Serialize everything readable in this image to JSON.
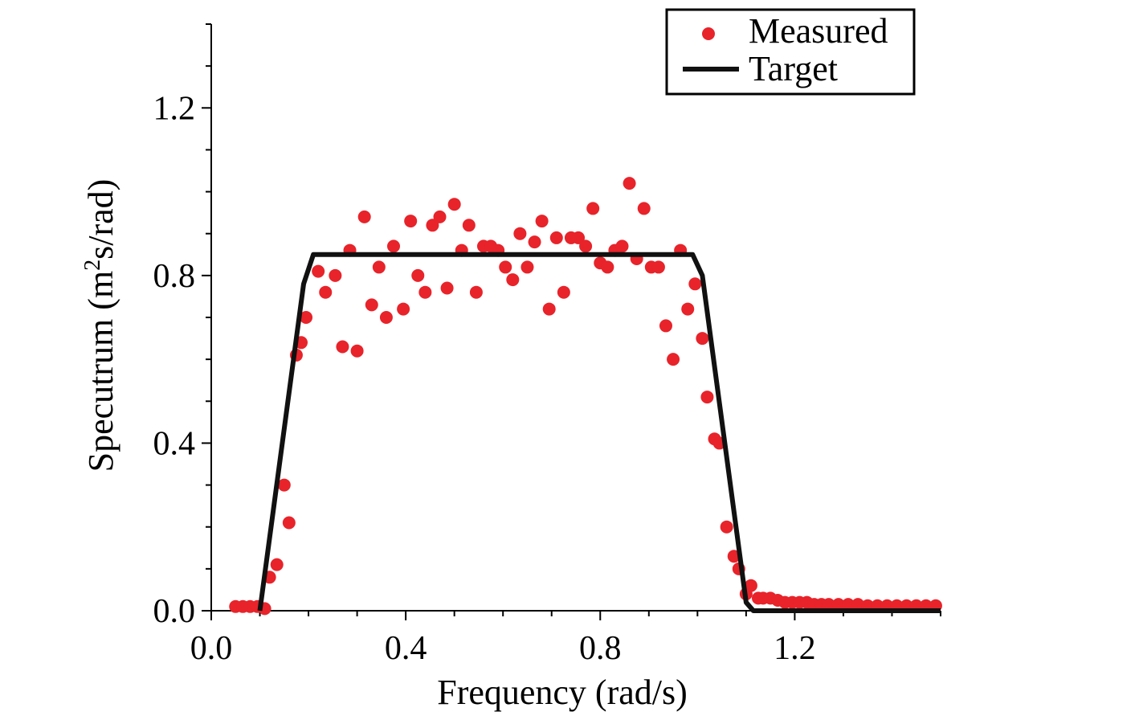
{
  "chart_data": {
    "type": "scatter",
    "xlabel": "Frequency (rad/s)",
    "ylabel_main": "Specutrum (m",
    "ylabel_sup": "2",
    "ylabel_tail": "s/rad)",
    "xlim": [
      0,
      1.5
    ],
    "ylim": [
      0,
      1.4
    ],
    "xticks": [
      0.0,
      0.4,
      0.8,
      1.2
    ],
    "xtick_labels": [
      "0.0",
      "0.4",
      "0.8",
      "1.2"
    ],
    "yticks": [
      0.0,
      0.4,
      0.8,
      1.2
    ],
    "ytick_labels": [
      "0.0",
      "0.4",
      "0.8",
      "1.2"
    ],
    "grid": false,
    "legend_position": "top-right",
    "colors": {
      "measured": "#e8232a",
      "target": "#111111"
    },
    "series": [
      {
        "name": "Measured",
        "style": "markers",
        "x": [
          0.05,
          0.065,
          0.08,
          0.095,
          0.11,
          0.12,
          0.135,
          0.15,
          0.16,
          0.175,
          0.185,
          0.195,
          0.22,
          0.235,
          0.255,
          0.27,
          0.285,
          0.3,
          0.315,
          0.33,
          0.345,
          0.36,
          0.375,
          0.395,
          0.41,
          0.425,
          0.44,
          0.455,
          0.47,
          0.485,
          0.5,
          0.515,
          0.53,
          0.545,
          0.56,
          0.575,
          0.59,
          0.605,
          0.62,
          0.635,
          0.65,
          0.665,
          0.68,
          0.695,
          0.71,
          0.725,
          0.74,
          0.755,
          0.77,
          0.785,
          0.8,
          0.815,
          0.83,
          0.845,
          0.86,
          0.875,
          0.89,
          0.905,
          0.92,
          0.935,
          0.95,
          0.965,
          0.98,
          0.995,
          1.01,
          1.02,
          1.035,
          1.045,
          1.06,
          1.075,
          1.085,
          1.1,
          1.11,
          1.125,
          1.135,
          1.15,
          1.165,
          1.18,
          1.195,
          1.21,
          1.225,
          1.24,
          1.255,
          1.27,
          1.29,
          1.31,
          1.33,
          1.35,
          1.37,
          1.39,
          1.41,
          1.43,
          1.45,
          1.47,
          1.49
        ],
        "y": [
          0.01,
          0.01,
          0.01,
          0.01,
          0.005,
          0.08,
          0.11,
          0.3,
          0.21,
          0.61,
          0.64,
          0.7,
          0.81,
          0.76,
          0.8,
          0.63,
          0.86,
          0.62,
          0.94,
          0.73,
          0.82,
          0.7,
          0.87,
          0.72,
          0.93,
          0.8,
          0.76,
          0.92,
          0.94,
          0.77,
          0.97,
          0.86,
          0.92,
          0.76,
          0.87,
          0.87,
          0.86,
          0.82,
          0.79,
          0.9,
          0.82,
          0.88,
          0.93,
          0.72,
          0.89,
          0.76,
          0.89,
          0.89,
          0.87,
          0.96,
          0.83,
          0.82,
          0.86,
          0.87,
          1.02,
          0.84,
          0.96,
          0.82,
          0.82,
          0.68,
          0.6,
          0.86,
          0.72,
          0.78,
          0.65,
          0.51,
          0.41,
          0.4,
          0.2,
          0.13,
          0.1,
          0.04,
          0.06,
          0.03,
          0.03,
          0.03,
          0.025,
          0.02,
          0.02,
          0.02,
          0.02,
          0.015,
          0.015,
          0.015,
          0.015,
          0.015,
          0.015,
          0.012,
          0.012,
          0.012,
          0.012,
          0.012,
          0.012,
          0.012,
          0.012
        ]
      },
      {
        "name": "Target",
        "style": "line",
        "x": [
          0.1,
          0.19,
          0.21,
          0.99,
          1.01,
          1.1,
          1.115,
          1.5
        ],
        "y": [
          0.0,
          0.78,
          0.85,
          0.85,
          0.8,
          0.02,
          0.0,
          0.0
        ]
      }
    ]
  }
}
